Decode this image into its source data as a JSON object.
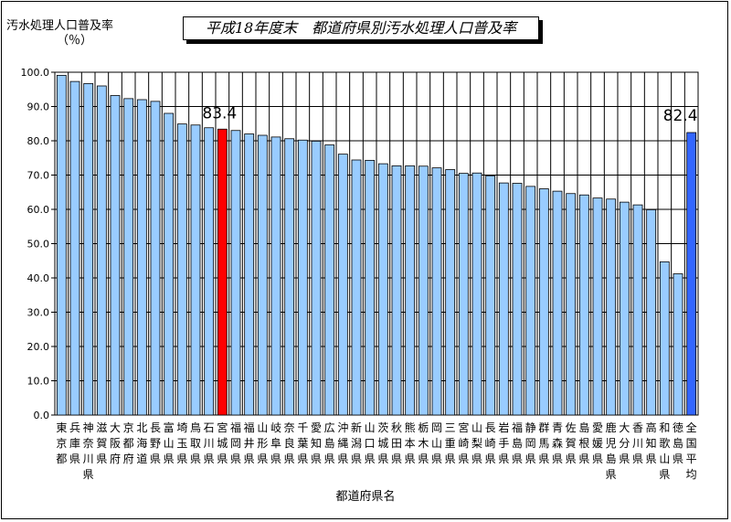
{
  "title": "平成18年度末　都道府県別汚水処理人口普及率",
  "ylabel": "汚水処理人口普及率",
  "ylabel_unit": "（％）",
  "xlabel": "都道府県名",
  "annotations": {
    "highlight": "83.4",
    "average": "82.4"
  },
  "colors": {
    "bar": "#99ccff",
    "highlight": "#ff0000",
    "average": "#3366ff",
    "grid": "#000000"
  },
  "chart_data": {
    "type": "bar",
    "title": "平成18年度末　都道府県別汚水処理人口普及率",
    "xlabel": "都道府県名",
    "ylabel": "汚水処理人口普及率（％）",
    "ylim": [
      0,
      100
    ],
    "yticks": [
      "0.0",
      "10.0",
      "20.0",
      "30.0",
      "40.0",
      "50.0",
      "60.0",
      "70.0",
      "80.0",
      "90.0",
      "100.0"
    ],
    "grid": true,
    "categories": [
      "東京都",
      "兵庫県",
      "神奈川県",
      "滋賀県",
      "大阪府",
      "京都府",
      "北海道",
      "長野県",
      "富山県",
      "埼玉県",
      "鳥取県",
      "石川県",
      "宮城県",
      "福岡県",
      "福井県",
      "山形県",
      "岐阜県",
      "奈良県",
      "千葉県",
      "愛知県",
      "広島県",
      "沖縄県",
      "新潟県",
      "山口県",
      "茨城県",
      "秋田県",
      "熊本県",
      "栃木県",
      "岡山県",
      "三重県",
      "宮崎県",
      "山梨県",
      "長崎県",
      "岩手県",
      "福島県",
      "静岡県",
      "群馬県",
      "青森県",
      "佐賀県",
      "島根県",
      "愛媛県",
      "鹿児島県",
      "大分県",
      "香川県",
      "高知県",
      "和歌山県",
      "徳島県",
      "全国平均"
    ],
    "values": [
      99.1,
      97.3,
      96.7,
      96.0,
      93.2,
      92.3,
      92.0,
      91.5,
      88.0,
      84.9,
      84.6,
      83.8,
      83.4,
      83.0,
      82.0,
      81.6,
      81.1,
      80.6,
      80.2,
      79.9,
      78.8,
      76.1,
      74.4,
      74.3,
      73.3,
      72.7,
      72.7,
      72.6,
      72.1,
      71.6,
      70.5,
      70.6,
      69.8,
      67.7,
      67.6,
      66.7,
      66.0,
      65.3,
      64.6,
      64.2,
      63.3,
      63.0,
      62.1,
      61.3,
      59.9,
      44.7,
      41.2,
      82.4
    ],
    "highlight_index": 12,
    "average_index": 47
  }
}
